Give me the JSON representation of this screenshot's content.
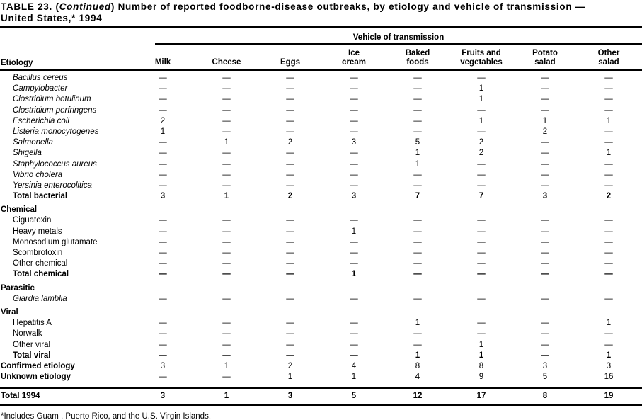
{
  "title": {
    "prefix": "TABLE 23. (",
    "continued": "Continued",
    "suffix": ") Number of reported foodborne-disease  outbreaks, by etiology and vehicle of transmission —",
    "line2": "United States,* 1994"
  },
  "header": {
    "spanner": "Vehicle of transmission",
    "etiology_label": "Etiology",
    "columns": [
      "Milk",
      "Cheese",
      "Eggs",
      "Ice\ncream",
      "Baked\nfoods",
      "Fruits and\nvegetables",
      "Potato\nsalad",
      "Other\nsalad"
    ]
  },
  "table": {
    "rows": [
      {
        "label": "Bacillus cereus",
        "type": "item-italic",
        "values": [
          "—",
          "—",
          "—",
          "—",
          "—",
          "—",
          "—",
          "—"
        ]
      },
      {
        "label": "Campylobacter",
        "type": "item-italic",
        "values": [
          "—",
          "—",
          "—",
          "—",
          "—",
          "1",
          "—",
          "—"
        ]
      },
      {
        "label": "Clostridium botulinum",
        "type": "item-italic",
        "values": [
          "—",
          "—",
          "—",
          "—",
          "—",
          "1",
          "—",
          "—"
        ]
      },
      {
        "label": "Clostridium perfringens",
        "type": "item-italic",
        "values": [
          "—",
          "—",
          "—",
          "—",
          "—",
          "—",
          "—",
          "—"
        ]
      },
      {
        "label": "Escherichia coli",
        "type": "item-italic",
        "values": [
          "2",
          "—",
          "—",
          "—",
          "—",
          "1",
          "1",
          "1"
        ]
      },
      {
        "label": "Listeria monocytogenes",
        "type": "item-italic",
        "values": [
          "1",
          "—",
          "—",
          "—",
          "—",
          "—",
          "2",
          "—"
        ]
      },
      {
        "label": "Salmonella",
        "type": "item-italic",
        "values": [
          "—",
          "1",
          "2",
          "3",
          "5",
          "2",
          "—",
          "—"
        ]
      },
      {
        "label": "Shigella",
        "type": "item-italic",
        "values": [
          "—",
          "—",
          "—",
          "—",
          "1",
          "2",
          "—",
          "1"
        ]
      },
      {
        "label": "Staphylococcus aureus",
        "type": "item-italic",
        "values": [
          "—",
          "—",
          "—",
          "—",
          "1",
          "—",
          "—",
          "—"
        ]
      },
      {
        "label": "Vibrio cholera",
        "type": "item-italic",
        "values": [
          "—",
          "—",
          "—",
          "—",
          "—",
          "—",
          "—",
          "—"
        ]
      },
      {
        "label": "Yersinia enterocolitica",
        "type": "item-italic",
        "values": [
          "—",
          "—",
          "—",
          "—",
          "—",
          "—",
          "—",
          "—"
        ]
      },
      {
        "label": "Total bacterial",
        "type": "total",
        "values": [
          "3",
          "1",
          "2",
          "3",
          "7",
          "7",
          "3",
          "2"
        ]
      },
      {
        "label": "Chemical",
        "type": "section",
        "values": []
      },
      {
        "label": "Ciguatoxin",
        "type": "item",
        "values": [
          "—",
          "—",
          "—",
          "—",
          "—",
          "—",
          "—",
          "—"
        ]
      },
      {
        "label": "Heavy metals",
        "type": "item",
        "values": [
          "—",
          "—",
          "—",
          "1",
          "—",
          "—",
          "—",
          "—"
        ]
      },
      {
        "label": "Monosodium glutamate",
        "type": "item",
        "values": [
          "—",
          "—",
          "—",
          "—",
          "—",
          "—",
          "—",
          "—"
        ]
      },
      {
        "label": "Scombrotoxin",
        "type": "item",
        "values": [
          "—",
          "—",
          "—",
          "—",
          "—",
          "—",
          "—",
          "—"
        ]
      },
      {
        "label": "Other chemical",
        "type": "item",
        "values": [
          "—",
          "—",
          "—",
          "—",
          "—",
          "—",
          "—",
          "—"
        ]
      },
      {
        "label": "Total chemical",
        "type": "total",
        "values": [
          "—",
          "—",
          "—",
          "1",
          "—",
          "—",
          "—",
          "—"
        ]
      },
      {
        "label": "Parasitic",
        "type": "section",
        "values": []
      },
      {
        "label": "Giardia lamblia",
        "type": "item-italic",
        "values": [
          "—",
          "—",
          "—",
          "—",
          "—",
          "—",
          "—",
          "—"
        ]
      },
      {
        "label": "Viral",
        "type": "section",
        "values": []
      },
      {
        "label": "Hepatitis A",
        "type": "item",
        "values": [
          "—",
          "—",
          "—",
          "—",
          "1",
          "—",
          "—",
          "1"
        ]
      },
      {
        "label": "Norwalk",
        "type": "item",
        "values": [
          "—",
          "—",
          "—",
          "—",
          "—",
          "—",
          "—",
          "—"
        ]
      },
      {
        "label": "Other viral",
        "type": "item",
        "values": [
          "—",
          "—",
          "—",
          "—",
          "—",
          "1",
          "—",
          "—"
        ]
      },
      {
        "label": "Total viral",
        "type": "total",
        "values": [
          "—",
          "—",
          "—",
          "—",
          "1",
          "1",
          "—",
          "1"
        ]
      },
      {
        "label": "Confirmed etiology",
        "type": "summary",
        "values": [
          "3",
          "1",
          "2",
          "4",
          "8",
          "8",
          "3",
          "3"
        ]
      },
      {
        "label": "Unknown etiology",
        "type": "summary",
        "values": [
          "—",
          "—",
          "1",
          "1",
          "4",
          "9",
          "5",
          "16"
        ]
      },
      {
        "label": "Total 1994",
        "type": "grand-total",
        "values": [
          "3",
          "1",
          "3",
          "5",
          "12",
          "17",
          "8",
          "19"
        ]
      }
    ]
  },
  "footnote": "*Includes Guam , Puerto Rico, and the U.S. Virgin Islands."
}
